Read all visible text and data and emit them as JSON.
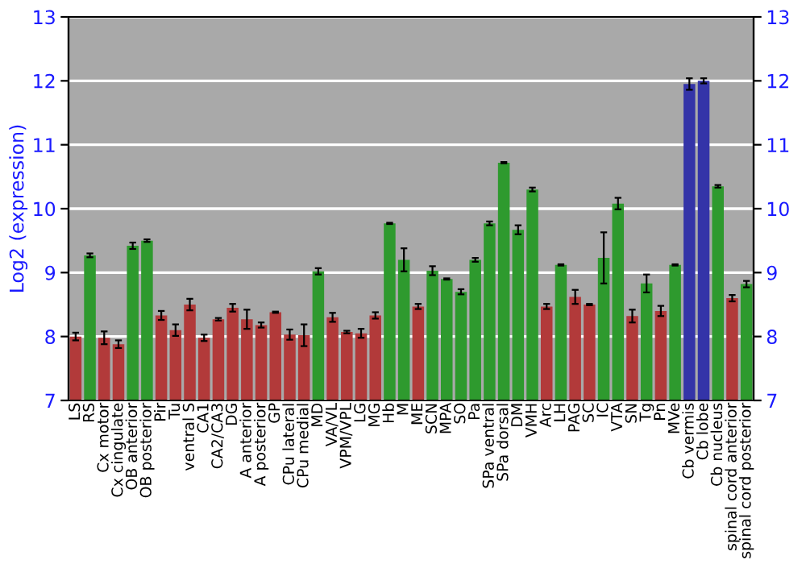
{
  "chart_data": {
    "type": "bar",
    "ylabel": "Log2 (expression)",
    "categories": [
      "LS",
      "RS",
      "Cx motor",
      "Cx cingulate",
      "OB anterior",
      "OB posterior",
      "Pir",
      "Tu",
      "ventral S",
      "CA1",
      "CA2/CA3",
      "DG",
      "A anterior",
      "A posterior",
      "GP",
      "CPu lateral",
      "CPu medial",
      "MD",
      "VA/VL",
      "VPM/VPL",
      "LG",
      "MG",
      "Hb",
      "M",
      "ME",
      "SCN",
      "MPA",
      "SO",
      "Pa",
      "SPa ventral",
      "SPa dorsal",
      "DM",
      "VMH",
      "Arc",
      "LH",
      "PAG",
      "SC",
      "IC",
      "VTA",
      "SN",
      "Tg",
      "Pn",
      "MVe",
      "Cb vermis",
      "Cb lobe",
      "Cb nucleus",
      "spinal cord anterior",
      "spinal cord posterior"
    ],
    "values": [
      8.0,
      9.27,
      7.98,
      7.88,
      9.42,
      9.5,
      8.33,
      8.1,
      8.5,
      7.98,
      8.27,
      8.45,
      8.27,
      8.18,
      8.38,
      8.03,
      8.02,
      9.02,
      8.3,
      8.07,
      8.05,
      8.33,
      9.77,
      9.2,
      8.47,
      9.03,
      8.9,
      8.7,
      9.2,
      9.77,
      10.72,
      9.67,
      10.3,
      8.47,
      9.12,
      8.62,
      8.5,
      9.23,
      10.08,
      8.32,
      8.83,
      8.4,
      9.12,
      11.95,
      12.0,
      10.35,
      8.6,
      8.82
    ],
    "errors": [
      0.06,
      0.03,
      0.1,
      0.06,
      0.05,
      0.02,
      0.07,
      0.09,
      0.09,
      0.05,
      0.02,
      0.06,
      0.15,
      0.04,
      0.01,
      0.08,
      0.17,
      0.05,
      0.07,
      0.02,
      0.07,
      0.05,
      0.01,
      0.18,
      0.04,
      0.07,
      0.01,
      0.04,
      0.03,
      0.03,
      0.01,
      0.07,
      0.03,
      0.04,
      0.01,
      0.11,
      0.01,
      0.4,
      0.09,
      0.1,
      0.14,
      0.08,
      0.01,
      0.09,
      0.04,
      0.02,
      0.05,
      0.05
    ],
    "colors": [
      "#b23a3a",
      "#2e9a2e",
      "#b23a3a",
      "#b23a3a",
      "#2e9a2e",
      "#2e9a2e",
      "#b23a3a",
      "#b23a3a",
      "#b23a3a",
      "#b23a3a",
      "#b23a3a",
      "#b23a3a",
      "#b23a3a",
      "#b23a3a",
      "#b23a3a",
      "#b23a3a",
      "#b23a3a",
      "#2e9a2e",
      "#b23a3a",
      "#b23a3a",
      "#b23a3a",
      "#b23a3a",
      "#2e9a2e",
      "#2e9a2e",
      "#b23a3a",
      "#2e9a2e",
      "#2e9a2e",
      "#2e9a2e",
      "#2e9a2e",
      "#2e9a2e",
      "#2e9a2e",
      "#2e9a2e",
      "#2e9a2e",
      "#b23a3a",
      "#2e9a2e",
      "#b23a3a",
      "#b23a3a",
      "#2e9a2e",
      "#2e9a2e",
      "#b23a3a",
      "#2e9a2e",
      "#b23a3a",
      "#2e9a2e",
      "#3434a8",
      "#3434a8",
      "#2e9a2e",
      "#b23a3a",
      "#2e9a2e"
    ],
    "ylim": [
      7,
      13
    ],
    "yticks": [
      7,
      8,
      9,
      10,
      11,
      12,
      13
    ],
    "y2lim": [
      7,
      13
    ],
    "y2ticks": [
      7,
      8,
      9,
      10,
      11,
      12,
      13
    ],
    "grid": "y"
  }
}
